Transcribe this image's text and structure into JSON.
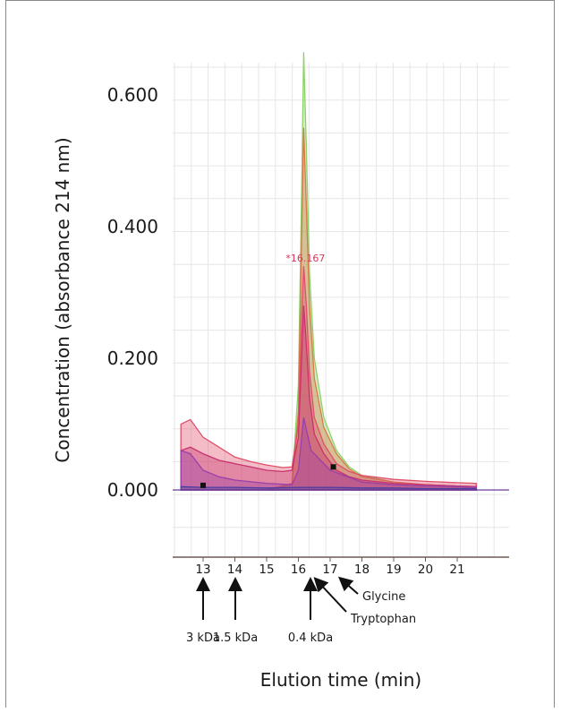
{
  "chart_data": {
    "type": "area",
    "title": "",
    "xlabel": "Elution time (min)",
    "ylabel": "Concentration (absorbance 214 nm)",
    "xlim": [
      12.3,
      21.6
    ],
    "ylim": [
      -0.13,
      0.66
    ],
    "x_ticks": [
      "13",
      "14",
      "15",
      "16",
      "17",
      "18",
      "19",
      "20",
      "21"
    ],
    "y_ticks": [
      "0.600",
      "0.400",
      "0.200",
      "0.000"
    ],
    "peak_label": "*16.167",
    "series": [
      {
        "color": "#8fd16a",
        "x": [
          12.3,
          13,
          14,
          15,
          15.8,
          16.0,
          16.1,
          16.167,
          16.25,
          16.35,
          16.5,
          16.8,
          17.2,
          17.6,
          18,
          19,
          20,
          21,
          21.6
        ],
        "y": [
          0.0,
          0.0,
          0.0,
          0.0,
          0.008,
          0.16,
          0.45,
          0.665,
          0.52,
          0.33,
          0.2,
          0.11,
          0.06,
          0.035,
          0.022,
          0.012,
          0.008,
          0.006,
          0.005
        ]
      },
      {
        "color": "#d97a4a",
        "x": [
          12.3,
          13,
          14,
          15,
          15.8,
          16.0,
          16.1,
          16.167,
          16.25,
          16.35,
          16.5,
          16.8,
          17.2,
          17.6,
          18,
          19,
          20,
          21,
          21.6
        ],
        "y": [
          0.0,
          0.0,
          0.0,
          0.0,
          0.01,
          0.12,
          0.38,
          0.55,
          0.43,
          0.28,
          0.17,
          0.095,
          0.055,
          0.032,
          0.02,
          0.012,
          0.008,
          0.006,
          0.005
        ]
      },
      {
        "color": "#e0506a",
        "x": [
          12.3,
          12.6,
          13,
          13.5,
          14,
          14.5,
          15,
          15.5,
          15.8,
          16.0,
          16.1,
          16.167,
          16.25,
          16.35,
          16.5,
          16.8,
          17.2,
          17.6,
          18,
          19,
          20,
          21,
          21.6
        ],
        "y": [
          0.1,
          0.107,
          0.08,
          0.065,
          0.05,
          0.043,
          0.038,
          0.034,
          0.035,
          0.1,
          0.26,
          0.34,
          0.28,
          0.18,
          0.11,
          0.07,
          0.04,
          0.028,
          0.022,
          0.016,
          0.013,
          0.011,
          0.01
        ]
      },
      {
        "color": "#c8326e",
        "x": [
          12.3,
          12.6,
          13,
          13.5,
          14,
          14.5,
          15,
          15.5,
          15.8,
          16.0,
          16.1,
          16.167,
          16.25,
          16.35,
          16.5,
          16.8,
          17.2,
          17.6,
          18,
          19,
          20,
          21,
          21.6
        ],
        "y": [
          0.06,
          0.065,
          0.055,
          0.045,
          0.04,
          0.035,
          0.03,
          0.028,
          0.03,
          0.08,
          0.2,
          0.28,
          0.22,
          0.14,
          0.085,
          0.055,
          0.03,
          0.02,
          0.015,
          0.01,
          0.008,
          0.006,
          0.005
        ]
      },
      {
        "color": "#9a3fa8",
        "x": [
          12.3,
          12.6,
          13,
          13.5,
          14,
          15,
          15.8,
          16.0,
          16.167,
          16.4,
          17,
          18,
          19,
          20,
          21,
          21.6
        ],
        "y": [
          0.06,
          0.055,
          0.03,
          0.02,
          0.015,
          0.01,
          0.008,
          0.03,
          0.11,
          0.06,
          0.03,
          0.012,
          0.008,
          0.006,
          0.005,
          0.004
        ]
      },
      {
        "color": "#4a3fa0",
        "x": [
          12.3,
          13,
          14,
          15,
          16,
          17,
          18,
          19,
          20,
          21,
          21.6
        ],
        "y": [
          0.005,
          0.004,
          0.004,
          0.003,
          0.004,
          0.004,
          0.003,
          0.003,
          0.002,
          0.002,
          0.002
        ]
      }
    ],
    "markers": [
      {
        "x": 13.0,
        "y": 0.007
      },
      {
        "x": 17.1,
        "y": 0.035
      }
    ],
    "annotations": [
      {
        "label": "3 kDa",
        "x": 13.0
      },
      {
        "label": "1.5 kDa",
        "x": 14.0
      },
      {
        "label": "0.4 kDa",
        "x": 15.9
      },
      {
        "label": "Tryptophan",
        "x": 16.3
      },
      {
        "label": "Glycine",
        "x": 17.05
      }
    ]
  }
}
